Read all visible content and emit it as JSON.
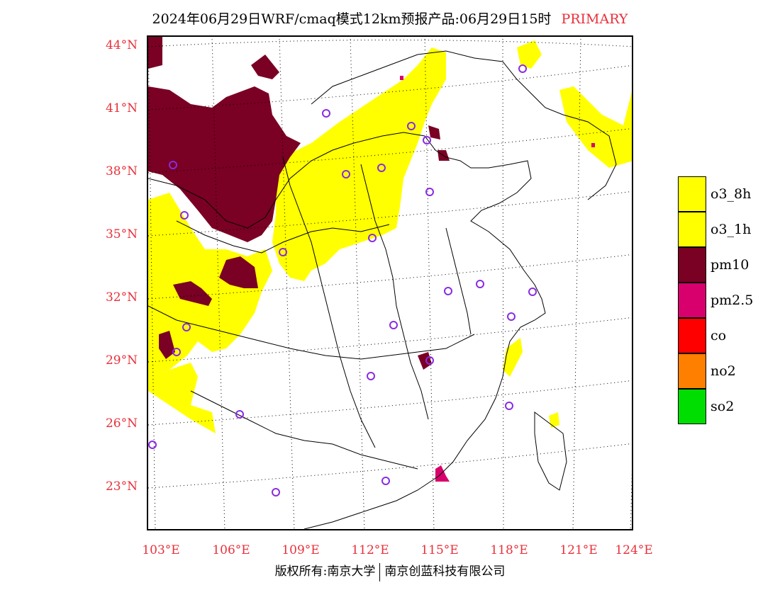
{
  "title": {
    "text": "2024年06月29日WRF/cmaq模式12km预报产品:06月29日15时",
    "tag": "PRIMARY"
  },
  "lat_labels": [
    "44°N",
    "41°N",
    "38°N",
    "35°N",
    "32°N",
    "29°N",
    "26°N",
    "23°N"
  ],
  "lon_labels": [
    "103°E",
    "106°E",
    "109°E",
    "112°E",
    "115°E",
    "118°E",
    "121°E",
    "124°E"
  ],
  "legend": [
    {
      "label": "o3_8h",
      "color": "#ffff00"
    },
    {
      "label": "o3_1h",
      "color": "#ffff00"
    },
    {
      "label": "pm10",
      "color": "#7a0024"
    },
    {
      "label": "pm2.5",
      "color": "#d8006c"
    },
    {
      "label": "co",
      "color": "#ff0000"
    },
    {
      "label": "no2",
      "color": "#ff7f00"
    },
    {
      "label": "so2",
      "color": "#00dd00"
    }
  ],
  "footer": {
    "left": "版权所有:南京大学",
    "right": "南京创蓝科技有限公司"
  },
  "colors": {
    "accent_text": "#e8303a",
    "station_marker": "#8a2be2"
  }
}
